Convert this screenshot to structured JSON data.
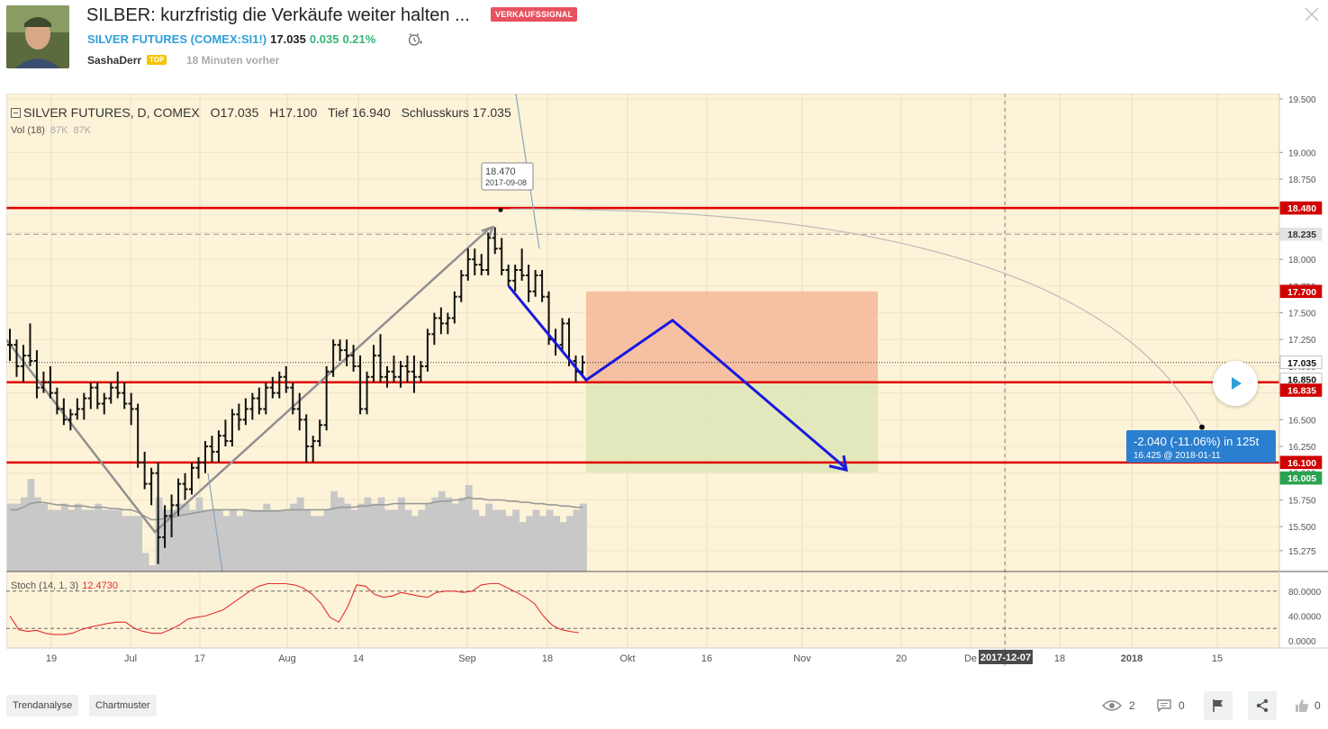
{
  "header": {
    "title": "SILBER: kurzfristig die Verkäufe weiter halten ...",
    "signal_badge": "VERKAUFSSIGNAL",
    "symbol_name": "SILVER FUTURES",
    "symbol_ticker": "(COMEX:SI1!)",
    "symbol_prefix": "SILVER FUTURES (",
    "ticker_link": "COMEX:SI1!",
    "symbol_suffix": ")",
    "price": "17.035",
    "change": "0.035",
    "change_pct": "0.21%",
    "author": "SashaDerr",
    "author_badge": "TOP",
    "time_ago": "18 Minuten vorher"
  },
  "legend": {
    "series": "SILVER FUTURES, D, COMEX",
    "open_label": "O",
    "open": "17.035",
    "high_label": "H",
    "high": "17.100",
    "low_label": "Tief",
    "low": "16.940",
    "close_label": "Schlusskurs",
    "close": "17.035",
    "vol_label": "Vol (18)",
    "vol_a": "87K",
    "vol_b": "87K",
    "stoch_label": "Stoch (14, 1, 3)",
    "stoch_value": "12.4730"
  },
  "chart_data": {
    "type": "bar",
    "subtype": "ohlc-with-drawings",
    "y_axis": {
      "ticks": [
        19.5,
        19.0,
        18.75,
        18.5,
        18.25,
        18.0,
        17.75,
        17.5,
        17.25,
        17.0,
        16.75,
        16.5,
        16.25,
        16.0,
        15.75,
        15.5,
        15.275
      ],
      "tick_labels": [
        "19.500",
        "19.000",
        "18.750",
        "18.500",
        "18.250",
        "18.000",
        "17.750",
        "17.500",
        "17.250",
        "17.000",
        "16.750",
        "16.500",
        "16.250",
        "16.000",
        "15.750",
        "15.500",
        "15.275"
      ],
      "range": [
        15.08,
        19.55
      ]
    },
    "price_labels": [
      {
        "value": 18.48,
        "text": "18.480",
        "style": "red"
      },
      {
        "value": 18.235,
        "text": "18.235",
        "style": "gray"
      },
      {
        "value": 17.7,
        "text": "17.700",
        "style": "red"
      },
      {
        "value": 17.035,
        "text": "17.035",
        "style": "white"
      },
      {
        "value": 16.85,
        "text": "16.850",
        "style": "white"
      },
      {
        "value": 16.835,
        "text": "16.835",
        "style": "red"
      },
      {
        "value": 16.1,
        "text": "16.100",
        "style": "red"
      },
      {
        "value": 16.005,
        "text": "16.005",
        "style": "green"
      }
    ],
    "horizontal_lines": [
      18.48,
      16.85,
      16.1
    ],
    "dashed_line": 18.235,
    "dotted_line": 17.035,
    "x_axis": {
      "labels": [
        "19",
        "Jul",
        "17",
        "Aug",
        "14",
        "Sep",
        "18",
        "Okt",
        "16",
        "Nov",
        "20",
        "De",
        "2017-12-07",
        "18",
        "2018",
        "15"
      ],
      "bold": [
        false,
        false,
        false,
        false,
        false,
        false,
        false,
        false,
        false,
        false,
        false,
        false,
        true,
        false,
        true,
        false
      ]
    },
    "ohlc": [
      [
        17.2,
        17.35,
        17.05,
        17.2
      ],
      [
        17.2,
        17.25,
        16.9,
        17.0
      ],
      [
        17.0,
        17.2,
        16.85,
        17.1
      ],
      [
        17.1,
        17.4,
        17.0,
        17.05
      ],
      [
        17.05,
        17.15,
        16.7,
        16.8
      ],
      [
        16.8,
        16.95,
        16.75,
        16.85
      ],
      [
        16.85,
        17.0,
        16.7,
        16.75
      ],
      [
        16.75,
        16.8,
        16.55,
        16.6
      ],
      [
        16.6,
        16.7,
        16.45,
        16.5
      ],
      [
        16.5,
        16.6,
        16.4,
        16.55
      ],
      [
        16.55,
        16.7,
        16.5,
        16.6
      ],
      [
        16.6,
        16.75,
        16.5,
        16.7
      ],
      [
        16.7,
        16.85,
        16.6,
        16.8
      ],
      [
        16.8,
        16.85,
        16.6,
        16.65
      ],
      [
        16.65,
        16.75,
        16.55,
        16.7
      ],
      [
        16.7,
        16.85,
        16.65,
        16.8
      ],
      [
        16.8,
        16.95,
        16.7,
        16.75
      ],
      [
        16.75,
        16.85,
        16.6,
        16.65
      ],
      [
        16.65,
        16.75,
        16.45,
        16.6
      ],
      [
        16.6,
        16.65,
        16.05,
        16.1
      ],
      [
        16.1,
        16.2,
        15.85,
        15.9
      ],
      [
        15.9,
        16.05,
        15.7,
        16.0
      ],
      [
        16.0,
        16.1,
        15.15,
        15.4
      ],
      [
        15.4,
        15.7,
        15.3,
        15.6
      ],
      [
        15.6,
        15.8,
        15.4,
        15.7
      ],
      [
        15.7,
        15.95,
        15.6,
        15.9
      ],
      [
        15.9,
        16.0,
        15.75,
        15.85
      ],
      [
        15.85,
        16.1,
        15.8,
        16.05
      ],
      [
        16.05,
        16.15,
        15.95,
        16.1
      ],
      [
        16.1,
        16.3,
        16.0,
        16.25
      ],
      [
        16.25,
        16.35,
        16.1,
        16.2
      ],
      [
        16.2,
        16.4,
        16.1,
        16.35
      ],
      [
        16.35,
        16.5,
        16.25,
        16.3
      ],
      [
        16.3,
        16.6,
        16.25,
        16.55
      ],
      [
        16.55,
        16.65,
        16.4,
        16.5
      ],
      [
        16.5,
        16.7,
        16.45,
        16.6
      ],
      [
        16.6,
        16.75,
        16.5,
        16.7
      ],
      [
        16.7,
        16.8,
        16.55,
        16.6
      ],
      [
        16.6,
        16.85,
        16.55,
        16.8
      ],
      [
        16.8,
        16.9,
        16.7,
        16.75
      ],
      [
        16.75,
        16.95,
        16.7,
        16.9
      ],
      [
        16.9,
        17.0,
        16.75,
        16.8
      ],
      [
        16.8,
        16.85,
        16.55,
        16.6
      ],
      [
        16.6,
        16.75,
        16.4,
        16.5
      ],
      [
        16.5,
        16.55,
        16.1,
        16.25
      ],
      [
        16.25,
        16.35,
        16.1,
        16.3
      ],
      [
        16.3,
        16.5,
        16.25,
        16.45
      ],
      [
        16.45,
        17.0,
        16.4,
        16.95
      ],
      [
        16.95,
        17.25,
        16.9,
        17.2
      ],
      [
        17.2,
        17.25,
        17.05,
        17.15
      ],
      [
        17.15,
        17.25,
        17.0,
        17.1
      ],
      [
        17.1,
        17.2,
        16.95,
        17.0
      ],
      [
        17.0,
        17.1,
        16.55,
        16.6
      ],
      [
        16.6,
        16.95,
        16.55,
        16.9
      ],
      [
        16.9,
        17.2,
        16.85,
        17.1
      ],
      [
        17.1,
        17.3,
        16.85,
        16.9
      ],
      [
        16.9,
        17.0,
        16.8,
        16.95
      ],
      [
        16.95,
        17.1,
        16.85,
        16.9
      ],
      [
        16.9,
        17.05,
        16.8,
        17.0
      ],
      [
        17.0,
        17.1,
        16.85,
        16.95
      ],
      [
        16.95,
        17.1,
        16.75,
        16.9
      ],
      [
        16.9,
        17.05,
        16.85,
        17.0
      ],
      [
        17.0,
        17.35,
        16.95,
        17.3
      ],
      [
        17.3,
        17.5,
        17.2,
        17.45
      ],
      [
        17.45,
        17.55,
        17.3,
        17.4
      ],
      [
        17.4,
        17.5,
        17.3,
        17.45
      ],
      [
        17.45,
        17.7,
        17.4,
        17.65
      ],
      [
        17.65,
        17.9,
        17.6,
        17.85
      ],
      [
        17.85,
        18.1,
        17.8,
        18.0
      ],
      [
        18.0,
        18.1,
        17.85,
        17.95
      ],
      [
        17.95,
        18.05,
        17.85,
        17.9
      ],
      [
        17.9,
        18.25,
        17.85,
        18.2
      ],
      [
        18.2,
        18.3,
        18.05,
        18.1
      ],
      [
        18.1,
        18.2,
        17.85,
        17.9
      ],
      [
        17.9,
        17.95,
        17.75,
        17.8
      ],
      [
        17.8,
        17.95,
        17.7,
        17.9
      ],
      [
        17.9,
        18.1,
        17.8,
        17.85
      ],
      [
        17.85,
        17.95,
        17.6,
        17.7
      ],
      [
        17.7,
        17.9,
        17.65,
        17.85
      ],
      [
        17.85,
        17.9,
        17.6,
        17.65
      ],
      [
        17.65,
        17.7,
        17.2,
        17.25
      ],
      [
        17.25,
        17.35,
        17.1,
        17.2
      ],
      [
        17.2,
        17.45,
        17.15,
        17.4
      ],
      [
        17.4,
        17.45,
        17.0,
        17.05
      ],
      [
        17.05,
        17.1,
        16.85,
        16.95
      ],
      [
        16.95,
        17.1,
        16.9,
        17.035
      ]
    ],
    "volume": [
      0.55,
      0.55,
      0.6,
      0.75,
      0.6,
      0.55,
      0.5,
      0.5,
      0.55,
      0.5,
      0.55,
      0.5,
      0.5,
      0.55,
      0.5,
      0.5,
      0.5,
      0.45,
      0.45,
      0.45,
      0.15,
      0.05,
      0.6,
      0.5,
      0.5,
      0.55,
      0.55,
      0.5,
      0.6,
      0.5,
      0.5,
      0.5,
      0.45,
      0.5,
      0.45,
      0.5,
      0.5,
      0.5,
      0.55,
      0.5,
      0.5,
      0.5,
      0.55,
      0.6,
      0.5,
      0.45,
      0.45,
      0.5,
      0.65,
      0.6,
      0.55,
      0.5,
      0.55,
      0.6,
      0.55,
      0.6,
      0.5,
      0.5,
      0.6,
      0.5,
      0.45,
      0.5,
      0.55,
      0.6,
      0.65,
      0.6,
      0.55,
      0.6,
      0.7,
      0.5,
      0.45,
      0.55,
      0.5,
      0.5,
      0.45,
      0.5,
      0.4,
      0.45,
      0.5,
      0.45,
      0.5,
      0.45,
      0.4,
      0.45,
      0.5,
      0.55
    ],
    "volume_ma": [
      0.5,
      0.5,
      0.52,
      0.55,
      0.56,
      0.56,
      0.55,
      0.54,
      0.54,
      0.53,
      0.53,
      0.53,
      0.52,
      0.52,
      0.52,
      0.51,
      0.51,
      0.5,
      0.5,
      0.48,
      0.45,
      0.42,
      0.42,
      0.43,
      0.44,
      0.45,
      0.46,
      0.47,
      0.48,
      0.49,
      0.5,
      0.5,
      0.5,
      0.5,
      0.5,
      0.5,
      0.49,
      0.49,
      0.49,
      0.49,
      0.49,
      0.5,
      0.5,
      0.5,
      0.5,
      0.5,
      0.5,
      0.5,
      0.51,
      0.52,
      0.52,
      0.52,
      0.53,
      0.53,
      0.54,
      0.54,
      0.54,
      0.55,
      0.55,
      0.55,
      0.55,
      0.55,
      0.55,
      0.56,
      0.57,
      0.57,
      0.58,
      0.58,
      0.6,
      0.59,
      0.59,
      0.58,
      0.58,
      0.58,
      0.57,
      0.57,
      0.56,
      0.56,
      0.55,
      0.55,
      0.54,
      0.54,
      0.53,
      0.53,
      0.52,
      0.52
    ],
    "stoch": [
      0.4,
      0.18,
      0.15,
      0.17,
      0.12,
      0.1,
      0.1,
      0.12,
      0.18,
      0.22,
      0.25,
      0.28,
      0.3,
      0.3,
      0.2,
      0.15,
      0.12,
      0.12,
      0.18,
      0.25,
      0.35,
      0.38,
      0.4,
      0.45,
      0.5,
      0.6,
      0.7,
      0.8,
      0.88,
      0.92,
      0.92,
      0.92,
      0.9,
      0.85,
      0.75,
      0.6,
      0.38,
      0.3,
      0.55,
      0.9,
      0.88,
      0.75,
      0.7,
      0.72,
      0.78,
      0.75,
      0.72,
      0.7,
      0.78,
      0.8,
      0.8,
      0.78,
      0.8,
      0.9,
      0.92,
      0.92,
      0.85,
      0.78,
      0.7,
      0.6,
      0.4,
      0.25,
      0.18,
      0.15,
      0.13
    ],
    "stoch_axis": [
      "80.0000",
      "40.0000",
      "0.0000"
    ],
    "annotations": {
      "high_label_price": "18.470",
      "high_label_date": "2017-09-08",
      "projection_line1": "-2.040 (-11.06%) in 125t",
      "projection_line2": "16.425 @ 2018-01-11"
    }
  },
  "footer": {
    "tags": [
      "Trendanalyse",
      "Chartmuster"
    ],
    "views": "2",
    "comments": "0",
    "likes": "0"
  }
}
